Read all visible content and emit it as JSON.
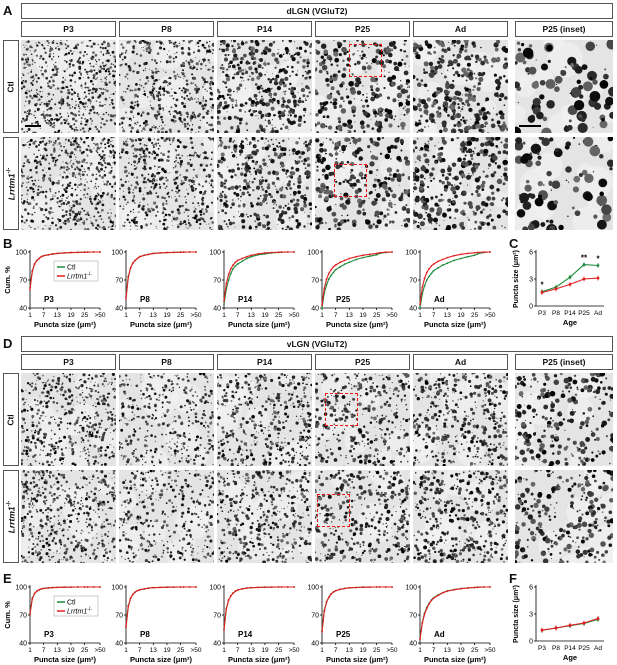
{
  "panels": {
    "A": {
      "letter": "A",
      "title": "dLGN (VGluT2)"
    },
    "B": {
      "letter": "B"
    },
    "C": {
      "letter": "C"
    },
    "D": {
      "letter": "D",
      "title": "vLGN (VGluT2)"
    },
    "E": {
      "letter": "E"
    },
    "F": {
      "letter": "F"
    }
  },
  "columns": [
    "P3",
    "P8",
    "P14",
    "P25",
    "Ad",
    "P25 (inset)"
  ],
  "rows": {
    "ctl": "Ctl",
    "ko": "Lrrtm1",
    "ko_sup": "-/-"
  },
  "colors": {
    "ctl": "#1e8a3c",
    "ko": "#e02020",
    "roi": "#e11111"
  },
  "cumulative_axis": {
    "ylabel": "Cum. %",
    "xlabel": "Puncta size (μm²)",
    "xticks": [
      "1",
      "7",
      "13",
      "19",
      "25",
      ">50"
    ],
    "yticks": [
      "40",
      "70",
      "100"
    ]
  },
  "legend": {
    "ctl": "Ctl",
    "ko": "Lrrtm1",
    "ko_sup": "-/-"
  },
  "chart_data": [
    {
      "id": "B-P3",
      "type": "line",
      "label": "P3",
      "x": [
        1,
        2,
        3,
        4,
        5,
        6,
        7,
        9,
        11,
        13,
        16,
        19,
        22,
        25,
        30,
        40,
        50
      ],
      "ylim": [
        40,
        100
      ],
      "series": [
        {
          "name": "Ctl",
          "values": [
            62,
            80,
            87,
            91,
            93,
            95,
            96,
            97,
            98,
            98.5,
            99,
            99.4,
            99.6,
            99.8,
            99.9,
            100,
            100
          ]
        },
        {
          "name": "Lrrtm1-/-",
          "values": [
            60,
            79,
            87,
            91,
            93,
            95,
            96,
            97,
            98,
            98.5,
            99,
            99.4,
            99.6,
            99.8,
            99.9,
            100,
            100
          ]
        }
      ]
    },
    {
      "id": "B-P8",
      "type": "line",
      "label": "P8",
      "x": [
        1,
        2,
        3,
        4,
        5,
        6,
        7,
        9,
        11,
        13,
        16,
        19,
        22,
        25,
        30,
        40,
        50
      ],
      "ylim": [
        40,
        100
      ],
      "series": [
        {
          "name": "Ctl",
          "values": [
            52,
            74,
            83,
            88,
            91,
            93,
            95,
            96.5,
            97.5,
            98.5,
            99,
            99.4,
            99.6,
            99.8,
            99.9,
            100,
            100
          ]
        },
        {
          "name": "Lrrtm1-/-",
          "values": [
            50,
            73,
            83,
            88,
            91,
            93,
            95,
            96.5,
            97.5,
            98.5,
            99,
            99.4,
            99.6,
            99.8,
            99.9,
            100,
            100
          ]
        }
      ]
    },
    {
      "id": "B-P14",
      "type": "line",
      "label": "P14",
      "x": [
        1,
        2,
        3,
        4,
        5,
        6,
        7,
        9,
        11,
        13,
        16,
        19,
        22,
        25,
        30,
        40,
        50
      ],
      "ylim": [
        40,
        100
      ],
      "series": [
        {
          "name": "Ctl",
          "values": [
            44,
            60,
            70,
            77,
            82,
            85,
            87,
            90,
            93,
            95,
            97,
            98,
            99,
            99.5,
            99.8,
            100,
            100
          ]
        },
        {
          "name": "Lrrtm1-/-",
          "values": [
            47,
            66,
            76,
            82,
            86,
            89,
            91,
            93,
            95,
            96.5,
            98,
            99,
            99.5,
            99.8,
            99.9,
            100,
            100
          ]
        }
      ]
    },
    {
      "id": "B-P25",
      "type": "line",
      "label": "P25",
      "x": [
        1,
        2,
        3,
        4,
        5,
        6,
        7,
        9,
        11,
        13,
        16,
        19,
        22,
        25,
        30,
        40,
        50
      ],
      "ylim": [
        40,
        100
      ],
      "series": [
        {
          "name": "Ctl",
          "values": [
            40,
            56,
            65,
            71,
            75,
            78,
            81,
            84,
            87,
            89,
            92,
            94,
            95.5,
            97,
            98.5,
            99.5,
            100
          ]
        },
        {
          "name": "Lrrtm1-/-",
          "values": [
            43,
            61,
            71,
            77,
            81,
            84,
            86,
            89,
            91,
            93,
            95,
            96.5,
            97.5,
            98.5,
            99.2,
            99.8,
            100
          ]
        }
      ]
    },
    {
      "id": "B-Ad",
      "type": "line",
      "label": "Ad",
      "x": [
        1,
        2,
        3,
        4,
        5,
        6,
        7,
        9,
        11,
        13,
        16,
        19,
        22,
        25,
        30,
        40,
        50
      ],
      "ylim": [
        40,
        100
      ],
      "series": [
        {
          "name": "Ctl",
          "values": [
            40,
            55,
            64,
            70,
            74,
            77,
            80,
            83,
            86,
            88,
            91,
            93,
            95,
            96.5,
            98,
            99.5,
            100
          ]
        },
        {
          "name": "Lrrtm1-/-",
          "values": [
            44,
            62,
            72,
            78,
            82,
            85,
            87,
            90,
            92,
            94,
            96,
            97.5,
            98.5,
            99.2,
            99.6,
            99.9,
            100
          ]
        }
      ]
    },
    {
      "id": "C",
      "type": "line",
      "xlabel": "Age",
      "ylabel": "Puncta size (μm²)",
      "categories": [
        "P3",
        "P8",
        "P14",
        "P25",
        "Ad"
      ],
      "ylim": [
        0,
        6
      ],
      "yticks": [
        "0",
        "3",
        "6"
      ],
      "series": [
        {
          "name": "Ctl",
          "values": [
            1.6,
            2.1,
            3.2,
            4.6,
            4.5
          ]
        },
        {
          "name": "Lrrtm1-/-",
          "values": [
            1.5,
            1.9,
            2.4,
            3.0,
            3.1
          ]
        }
      ],
      "annotations": [
        {
          "category": "P3",
          "text": "*"
        },
        {
          "category": "P25",
          "text": "**"
        },
        {
          "category": "Ad",
          "text": "*"
        }
      ]
    },
    {
      "id": "E-P3",
      "type": "line",
      "label": "P3",
      "x": [
        1,
        2,
        3,
        4,
        5,
        6,
        7,
        9,
        11,
        13,
        16,
        19,
        22,
        25,
        30,
        40,
        50
      ],
      "ylim": [
        40,
        100
      ],
      "series": [
        {
          "name": "Ctl",
          "values": [
            72,
            88,
            93,
            95.5,
            97,
            98,
            98.5,
            99,
            99.4,
            99.6,
            99.8,
            99.9,
            100,
            100,
            100,
            100,
            100
          ]
        },
        {
          "name": "Lrrtm1-/-",
          "values": [
            71,
            87,
            93,
            95.5,
            97,
            98,
            98.5,
            99,
            99.4,
            99.6,
            99.8,
            99.9,
            100,
            100,
            100,
            100,
            100
          ]
        }
      ]
    },
    {
      "id": "E-P8",
      "type": "line",
      "label": "P8",
      "x": [
        1,
        2,
        3,
        4,
        5,
        6,
        7,
        9,
        11,
        13,
        16,
        19,
        22,
        25,
        30,
        40,
        50
      ],
      "ylim": [
        40,
        100
      ],
      "series": [
        {
          "name": "Ctl",
          "values": [
            58,
            80,
            88,
            92,
            94.5,
            96,
            97,
            98,
            98.8,
            99.3,
            99.6,
            99.8,
            99.9,
            100,
            100,
            100,
            100
          ]
        },
        {
          "name": "Lrrtm1-/-",
          "values": [
            57,
            79,
            88,
            92,
            94.5,
            96,
            97,
            98,
            98.8,
            99.3,
            99.6,
            99.8,
            99.9,
            100,
            100,
            100,
            100
          ]
        }
      ]
    },
    {
      "id": "E-P14",
      "type": "line",
      "label": "P14",
      "x": [
        1,
        2,
        3,
        4,
        5,
        6,
        7,
        9,
        11,
        13,
        16,
        19,
        22,
        25,
        30,
        40,
        50
      ],
      "ylim": [
        40,
        100
      ],
      "series": [
        {
          "name": "Ctl",
          "values": [
            55,
            77,
            86,
            90.5,
            93.5,
            95.5,
            96.8,
            98,
            98.8,
            99.3,
            99.6,
            99.8,
            99.9,
            100,
            100,
            100,
            100
          ]
        },
        {
          "name": "Lrrtm1-/-",
          "values": [
            54,
            76,
            86,
            90.5,
            93.5,
            95.5,
            96.8,
            98,
            98.8,
            99.3,
            99.6,
            99.8,
            99.9,
            100,
            100,
            100,
            100
          ]
        }
      ]
    },
    {
      "id": "E-P25",
      "type": "line",
      "label": "P25",
      "x": [
        1,
        2,
        3,
        4,
        5,
        6,
        7,
        9,
        11,
        13,
        16,
        19,
        22,
        25,
        30,
        40,
        50
      ],
      "ylim": [
        40,
        100
      ],
      "series": [
        {
          "name": "Ctl",
          "values": [
            53,
            75,
            84,
            89,
            92.5,
            94.5,
            96,
            97.5,
            98.5,
            99.1,
            99.5,
            99.8,
            99.9,
            100,
            100,
            100,
            100
          ]
        },
        {
          "name": "Lrrtm1-/-",
          "values": [
            52,
            74,
            84,
            89,
            92.5,
            94.5,
            96,
            97.5,
            98.5,
            99.1,
            99.5,
            99.8,
            99.9,
            100,
            100,
            100,
            100
          ]
        }
      ]
    },
    {
      "id": "E-Ad",
      "type": "line",
      "label": "Ad",
      "x": [
        1,
        2,
        3,
        4,
        5,
        6,
        7,
        9,
        11,
        13,
        16,
        19,
        22,
        25,
        30,
        40,
        50
      ],
      "ylim": [
        40,
        100
      ],
      "series": [
        {
          "name": "Ctl",
          "values": [
            45,
            62,
            72,
            78,
            82.5,
            86,
            88.5,
            91.5,
            94,
            95.8,
            97.2,
            98.3,
            99,
            99.5,
            99.8,
            100,
            100
          ]
        },
        {
          "name": "Lrrtm1-/-",
          "values": [
            44,
            61,
            71,
            77,
            82,
            85.5,
            88,
            91,
            93.8,
            95.6,
            97,
            98.2,
            99,
            99.5,
            99.8,
            100,
            100
          ]
        }
      ]
    },
    {
      "id": "F",
      "type": "line",
      "xlabel": "Age",
      "ylabel": "Puncta size (μm²)",
      "categories": [
        "P3",
        "P8",
        "P14",
        "P25",
        "Ad"
      ],
      "ylim": [
        0,
        6
      ],
      "yticks": [
        "0",
        "3",
        "6"
      ],
      "series": [
        {
          "name": "Ctl",
          "values": [
            1.2,
            1.45,
            1.7,
            1.95,
            2.4
          ]
        },
        {
          "name": "Lrrtm1-/-",
          "values": [
            1.2,
            1.45,
            1.75,
            2.0,
            2.5
          ]
        }
      ]
    }
  ]
}
